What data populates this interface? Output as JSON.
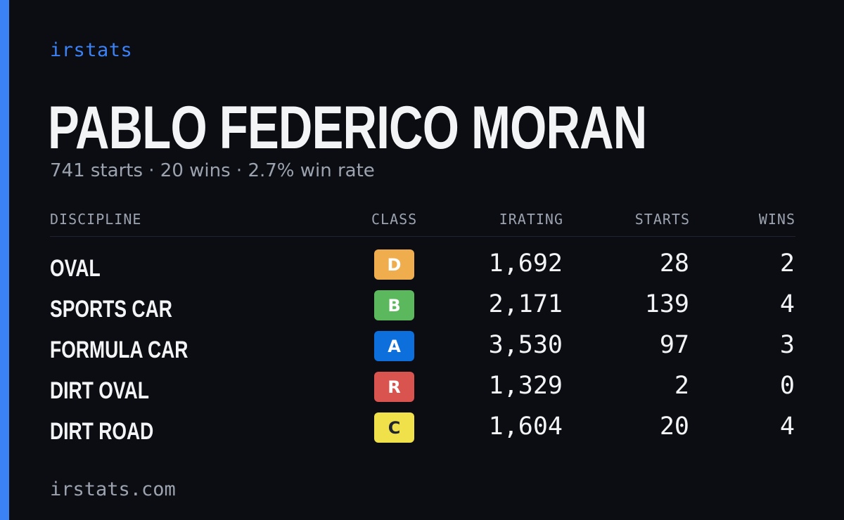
{
  "brand": "irstats",
  "driver": {
    "name": "PABLO FEDERICO MORAN",
    "summary": "741 starts · 20 wins · 2.7% win rate"
  },
  "table": {
    "headers": {
      "discipline": "DISCIPLINE",
      "class": "CLASS",
      "irating": "IRATING",
      "starts": "STARTS",
      "wins": "WINS"
    },
    "rows": [
      {
        "discipline": "OVAL",
        "class": "D",
        "class_color": "#f0ad4e",
        "class_text_color": "#ffffff",
        "irating": "1,692",
        "starts": "28",
        "wins": "2"
      },
      {
        "discipline": "SPORTS CAR",
        "class": "B",
        "class_color": "#5cb85c",
        "class_text_color": "#ffffff",
        "irating": "2,171",
        "starts": "139",
        "wins": "4"
      },
      {
        "discipline": "FORMULA CAR",
        "class": "A",
        "class_color": "#0d6fdc",
        "class_text_color": "#ffffff",
        "irating": "3,530",
        "starts": "97",
        "wins": "3"
      },
      {
        "discipline": "DIRT OVAL",
        "class": "R",
        "class_color": "#d9534f",
        "class_text_color": "#ffffff",
        "irating": "1,329",
        "starts": "2",
        "wins": "0"
      },
      {
        "discipline": "DIRT ROAD",
        "class": "C",
        "class_color": "#f0e14a",
        "class_text_color": "#1f2430",
        "irating": "1,604",
        "starts": "20",
        "wins": "4"
      }
    ]
  },
  "footer": "irstats.com",
  "colors": {
    "background": "#0b0d13",
    "accent": "#3b82f6"
  }
}
